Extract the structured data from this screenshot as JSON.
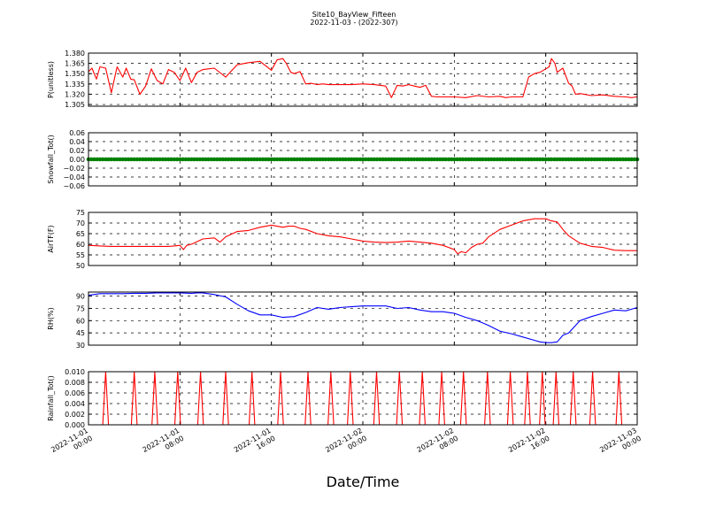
{
  "figure": {
    "title": "Site10_BayView_Fifteen",
    "subtitle": "2022-11-03 - (2022-307)",
    "xlabel": "Date/Time"
  },
  "chart_data": {
    "type": "line",
    "x_range": [
      0,
      48
    ],
    "x_unit": "hours since 2022-11-01 00:00",
    "x_ticks": [
      {
        "value": 0,
        "line1": "2022-11-01",
        "line2": "00:00"
      },
      {
        "value": 8,
        "line1": "2022-11-01",
        "line2": "08:00"
      },
      {
        "value": 16,
        "line1": "2022-11-01",
        "line2": "16:00"
      },
      {
        "value": 24,
        "line1": "2022-11-02",
        "line2": "00:00"
      },
      {
        "value": 32,
        "line1": "2022-11-02",
        "line2": "08:00"
      },
      {
        "value": 40,
        "line1": "2022-11-02",
        "line2": "16:00"
      },
      {
        "value": 48,
        "line1": "2022-11-03",
        "line2": "00:00"
      }
    ],
    "panels": [
      {
        "name": "P",
        "ylabel": "P(unitless)",
        "ylim": [
          1.3025,
          1.38
        ],
        "yticks": [
          1.305,
          1.32,
          1.335,
          1.35,
          1.365,
          1.38
        ],
        "ytick_labels": [
          "1.305",
          "1.320",
          "1.335",
          "1.350",
          "1.365",
          "1.380"
        ],
        "color": "#ff0000",
        "style": "line",
        "x": [
          0,
          0.3,
          0.7,
          1,
          1.5,
          2,
          2.5,
          3,
          3.3,
          3.7,
          4,
          4.5,
          5,
          5.5,
          6,
          6.5,
          7,
          7.5,
          8,
          8.5,
          9,
          9.5,
          10,
          10.5,
          11,
          12,
          13,
          14,
          15,
          16,
          16.5,
          17,
          17.3,
          17.7,
          18,
          18.5,
          19,
          19.5,
          20,
          20.5,
          21,
          22,
          23,
          24,
          25,
          26,
          26.5,
          27,
          27.5,
          28,
          28.5,
          29,
          29.5,
          30,
          30.5,
          31,
          32,
          33,
          34,
          35,
          36,
          36.5,
          37,
          37.5,
          38,
          38.5,
          39,
          39.5,
          40,
          40.3,
          40.5,
          40.8,
          41,
          41.5,
          42,
          42.3,
          42.6,
          43,
          44,
          45,
          46,
          47,
          47.5,
          48
        ],
        "values": [
          1.353,
          1.358,
          1.342,
          1.36,
          1.358,
          1.322,
          1.36,
          1.345,
          1.358,
          1.342,
          1.341,
          1.32,
          1.332,
          1.357,
          1.34,
          1.335,
          1.356,
          1.352,
          1.34,
          1.358,
          1.337,
          1.352,
          1.356,
          1.357,
          1.358,
          1.345,
          1.363,
          1.366,
          1.368,
          1.355,
          1.37,
          1.372,
          1.365,
          1.352,
          1.35,
          1.353,
          1.335,
          1.336,
          1.334,
          1.335,
          1.334,
          1.334,
          1.334,
          1.335,
          1.334,
          1.332,
          1.315,
          1.333,
          1.332,
          1.334,
          1.332,
          1.33,
          1.333,
          1.317,
          1.316,
          1.316,
          1.316,
          1.315,
          1.318,
          1.316,
          1.317,
          1.315,
          1.316,
          1.316,
          1.316,
          1.345,
          1.35,
          1.352,
          1.357,
          1.36,
          1.372,
          1.365,
          1.352,
          1.358,
          1.336,
          1.332,
          1.32,
          1.321,
          1.318,
          1.319,
          1.317,
          1.316,
          1.315,
          1.316
        ]
      },
      {
        "name": "Snowfall",
        "ylabel": "Snowfall_Tot()",
        "ylim": [
          -0.06,
          0.06
        ],
        "yticks": [
          -0.06,
          -0.04,
          -0.02,
          0.0,
          0.02,
          0.04,
          0.06
        ],
        "ytick_labels": [
          "−0.06",
          "−0.04",
          "−0.02",
          "0.00",
          "0.02",
          "0.04",
          "0.06"
        ],
        "color": "#008000",
        "style": "dots",
        "x": [
          0,
          48
        ],
        "values": [
          0,
          0
        ]
      },
      {
        "name": "AirTF",
        "ylabel": "AirTF(F)",
        "ylim": [
          50,
          75
        ],
        "yticks": [
          50,
          55,
          60,
          65,
          70,
          75
        ],
        "ytick_labels": [
          "50",
          "55",
          "60",
          "65",
          "70",
          "75"
        ],
        "color": "#ff0000",
        "style": "line",
        "x": [
          0,
          1,
          2,
          3,
          4,
          5,
          6,
          7,
          7.5,
          8,
          8.3,
          8.6,
          9,
          10,
          11,
          11.5,
          12,
          13,
          14,
          15,
          16,
          16.5,
          17,
          17.5,
          18,
          18.5,
          19,
          20,
          21,
          22,
          23,
          24,
          25,
          26,
          27,
          28,
          29,
          30,
          31,
          31.5,
          32,
          32.3,
          32.6,
          33,
          33.5,
          34,
          34.5,
          35,
          36,
          37,
          38,
          39,
          40,
          40.5,
          41,
          41.5,
          42,
          43,
          44,
          45,
          46,
          47,
          48
        ],
        "values": [
          59.5,
          59.2,
          59.0,
          59.0,
          59.0,
          59.0,
          59.0,
          59.0,
          59.2,
          59.5,
          57.5,
          59.5,
          60.0,
          62.5,
          63.0,
          61.0,
          63.5,
          66.0,
          66.5,
          68.0,
          69.0,
          68.5,
          68.0,
          68.5,
          68.5,
          67.5,
          67.0,
          65.0,
          64.0,
          63.5,
          62.5,
          61.5,
          61.0,
          60.8,
          61.0,
          61.5,
          61.0,
          60.5,
          59.5,
          58.5,
          57.5,
          55.5,
          56.5,
          56.0,
          58.5,
          60.0,
          60.5,
          63.5,
          67.0,
          69.0,
          71.0,
          72.0,
          72.0,
          71.0,
          70.5,
          67.0,
          64.0,
          60.5,
          59.0,
          58.5,
          57.2,
          57.0,
          57.0
        ]
      },
      {
        "name": "RH",
        "ylabel": "RH(%)",
        "ylim": [
          30,
          95
        ],
        "yticks": [
          30,
          45,
          60,
          75,
          90
        ],
        "ytick_labels": [
          "30",
          "45",
          "60",
          "75",
          "90"
        ],
        "color": "#0000ff",
        "style": "line",
        "x": [
          0,
          1,
          2,
          3,
          4,
          5,
          6,
          7,
          8,
          9,
          9.5,
          10,
          11,
          12,
          13,
          14,
          15,
          16,
          17,
          18,
          19,
          20,
          21,
          22,
          23,
          24,
          25,
          26,
          27,
          28,
          29,
          30,
          31,
          32,
          33,
          34,
          35,
          36,
          37,
          38,
          39,
          39.5,
          40,
          40.5,
          41,
          41.5,
          42,
          43,
          44,
          45,
          46,
          47,
          47.5,
          48
        ],
        "values": [
          91,
          93,
          93,
          93,
          93.5,
          93.5,
          94,
          94,
          94,
          93.5,
          94,
          94,
          92,
          89,
          80,
          72,
          67,
          67,
          64,
          65,
          70,
          76,
          74,
          76,
          77,
          78,
          78,
          78,
          75,
          76,
          73,
          71,
          71,
          69,
          64,
          60,
          54,
          47,
          44,
          40,
          36,
          34,
          33,
          33,
          34,
          42,
          45,
          60,
          65,
          69,
          73,
          72,
          74,
          76
        ]
      },
      {
        "name": "Rainfall",
        "ylabel": "Rainfall_Tot()",
        "ylim": [
          0,
          0.01
        ],
        "yticks": [
          0.0,
          0.002,
          0.004,
          0.006,
          0.008,
          0.01
        ],
        "ytick_labels": [
          "0.000",
          "0.002",
          "0.004",
          "0.006",
          "0.008",
          "0.010"
        ],
        "color": "#ff0000",
        "style": "spikes",
        "spike_value": 0.01,
        "spike_x": [
          1.5,
          4,
          5.8,
          7.8,
          9.8,
          12,
          14.3,
          16.8,
          19.2,
          21.2,
          22.9,
          25.2,
          27.2,
          29.2,
          30.9,
          32.8,
          34.9,
          36.9,
          38.4,
          39.7,
          40.9,
          42.4,
          44.1,
          46.4
        ]
      }
    ]
  }
}
